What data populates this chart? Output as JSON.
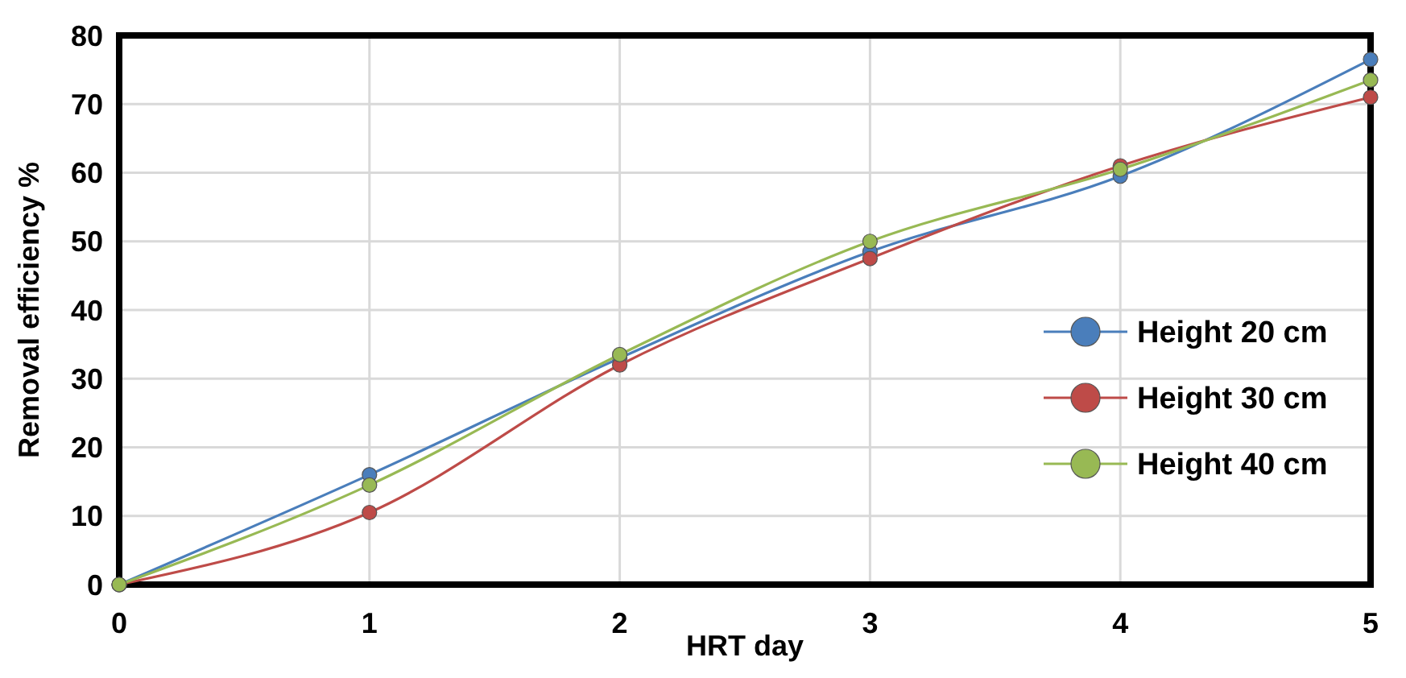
{
  "chart_data": {
    "type": "line",
    "xlabel": "HRT day",
    "ylabel": "Removal efficiency %",
    "x": [
      0,
      1,
      2,
      3,
      4,
      5
    ],
    "xlim": [
      0,
      5
    ],
    "xticks": [
      0,
      1,
      2,
      3,
      4,
      5
    ],
    "ylim": [
      0,
      80
    ],
    "yticks": [
      0,
      10,
      20,
      30,
      40,
      50,
      60,
      70,
      80
    ],
    "series": [
      {
        "name": "Height 20 cm",
        "color": "#4a7ebb",
        "values": [
          0,
          16,
          33,
          48.5,
          59.5,
          76.5
        ]
      },
      {
        "name": "Height 30 cm",
        "color": "#be4b48",
        "values": [
          0,
          10.5,
          32,
          47.5,
          61,
          71
        ]
      },
      {
        "name": "Height 40 cm",
        "color": "#98b954",
        "values": [
          0,
          14.5,
          33.5,
          50,
          60.5,
          73.5
        ]
      }
    ],
    "grid": true,
    "legend": "right",
    "marker": "circle",
    "line_style": "solid"
  }
}
